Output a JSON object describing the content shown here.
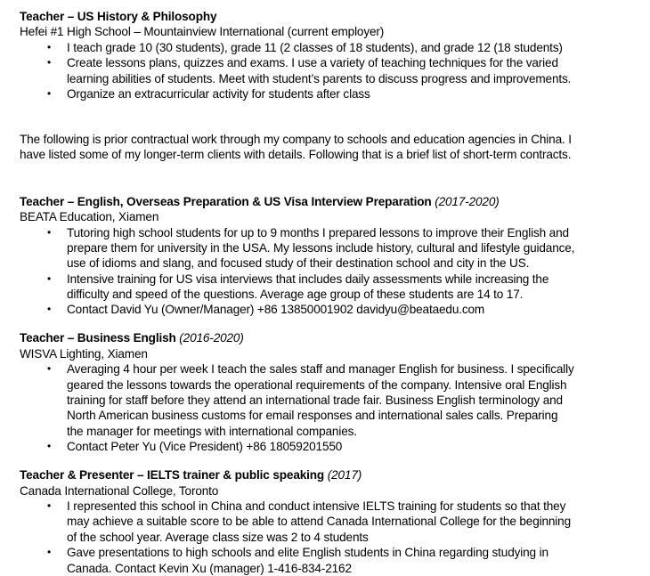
{
  "sections": [
    {
      "title": "Teacher – US History & Philosophy",
      "dates": "",
      "employer": "Hefei #1 High School – Mountainview International (current employer)",
      "bullets": [
        [
          "I teach grade 10 (30 students), grade 11 (2 classes of 18 students), and grade 12 (18 students)"
        ],
        [
          "Create lessons plans, quizzes and exams. I use a variety of teaching techniques for the varied",
          "learning abilities of students. Meet with student’s parents to discuss progress and improvements."
        ],
        [
          "Organize an extracurricular activity for students after class"
        ]
      ]
    },
    {
      "title": "Teacher – English, Overseas Preparation & US Visa Interview Preparation",
      "dates": "(2017-2020)",
      "employer": "BEATA Education, Xiamen",
      "bullets": [
        [
          "Tutoring high school students for up to 9 months I prepared lessons to improve their English and",
          "prepare them for university in the USA. My lessons include history, cultural and lifestyle guidance,",
          "use of idioms and slang, and focused study of their destination school and city in the US."
        ],
        [
          "Intensive training for US visa interviews that includes daily assessments while increasing the",
          "difficulty and speed of the questions. Average age group of these students are 14 to 17."
        ],
        [
          "Contact David Yu (Owner/Manager) +86 13850001902 davidyu@beataedu.com"
        ]
      ]
    },
    {
      "title": "Teacher – Business English",
      "dates": "(2016-2020)",
      "employer": "WISVA Lighting, Xiamen",
      "bullets": [
        [
          "Averaging 4 hour per week I teach the sales staff and manager English for business. I specifically",
          "geared the lessons towards the operational requirements of the company. Intensive oral English",
          "training for staff before they attend an international trade fair. Business English terminology and",
          "North American business customs for email responses and international sales calls. Preparing",
          "the manager for meetings with international companies."
        ],
        [
          "Contact Peter Yu (Vice President) +86 18059201550"
        ]
      ]
    },
    {
      "title": "Teacher & Presenter – IELTS trainer & public speaking",
      "dates": "(2017)",
      "employer": "Canada International College, Toronto",
      "bullets": [
        [
          "I represented this school in China and conduct intensive IELTS training for students so that they",
          "may achieve a suitable score to be able to attend Canada International College for the beginning",
          "of the school year. Average class size was 2 to 4 students"
        ],
        [
          "Gave presentations to high schools and elite English students in China regarding studying in",
          "Canada. Contact Kevin Xu (manager) 1-416-834-2162"
        ]
      ]
    }
  ],
  "intro": [
    "The following is prior contractual work through my company to schools and education agencies in China. I",
    "have listed some of my longer-term clients with details. Following that is a brief list of short-term contracts."
  ],
  "bullet_glyph": "•"
}
